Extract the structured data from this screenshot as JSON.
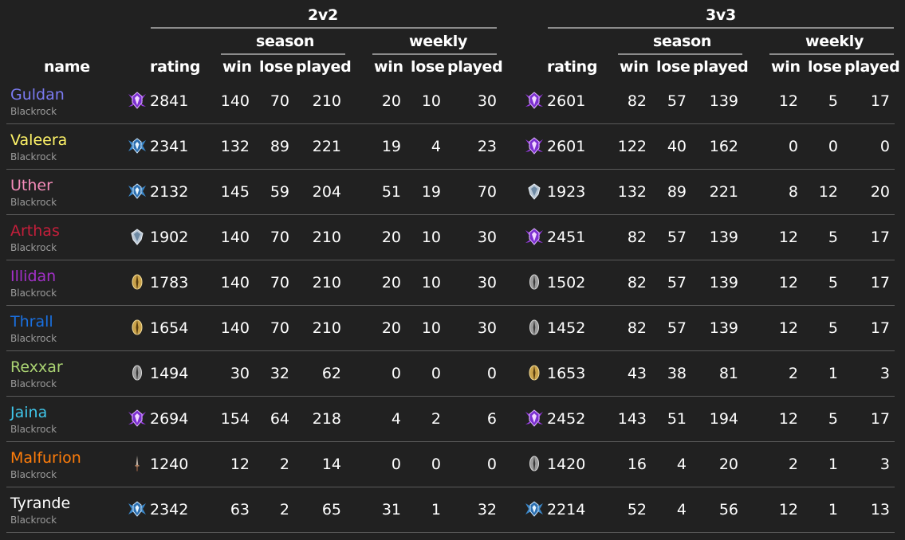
{
  "headers": {
    "name": "name",
    "bracket_2v2": "2v2",
    "bracket_3v3": "3v3",
    "season": "season",
    "weekly": "weekly",
    "rating": "rating",
    "win": "win",
    "lose": "lose",
    "played": "played"
  },
  "colors": {
    "background": "#212121",
    "divider": "#5a5a5a",
    "group_line": "#8c8c8c",
    "realm": "#9a9a9a"
  },
  "players": [
    {
      "name": "Guldan",
      "realm": "Blackrock",
      "color": "#7b7bf2",
      "r2": {
        "icon": "gladiator-icon",
        "rating": "2841",
        "sw": "140",
        "sl": "70",
        "sp": "210",
        "ww": "20",
        "wl": "10",
        "wp": "30"
      },
      "r3": {
        "icon": "gladiator-icon",
        "rating": "2601",
        "sw": "82",
        "sl": "57",
        "sp": "139",
        "ww": "12",
        "wl": "5",
        "wp": "17"
      }
    },
    {
      "name": "Valeera",
      "realm": "Blackrock",
      "color": "#fff468",
      "r2": {
        "icon": "duelist-icon",
        "rating": "2341",
        "sw": "132",
        "sl": "89",
        "sp": "221",
        "ww": "19",
        "wl": "4",
        "wp": "23"
      },
      "r3": {
        "icon": "gladiator-icon",
        "rating": "2601",
        "sw": "122",
        "sl": "40",
        "sp": "162",
        "ww": "0",
        "wl": "0",
        "wp": "0"
      }
    },
    {
      "name": "Uther",
      "realm": "Blackrock",
      "color": "#f58cba",
      "r2": {
        "icon": "duelist-icon",
        "rating": "2132",
        "sw": "145",
        "sl": "59",
        "sp": "204",
        "ww": "51",
        "wl": "19",
        "wp": "70"
      },
      "r3": {
        "icon": "rival-icon",
        "rating": "1923",
        "sw": "132",
        "sl": "89",
        "sp": "221",
        "ww": "8",
        "wl": "12",
        "wp": "20"
      }
    },
    {
      "name": "Arthas",
      "realm": "Blackrock",
      "color": "#c41f3b",
      "r2": {
        "icon": "rival-icon",
        "rating": "1902",
        "sw": "140",
        "sl": "70",
        "sp": "210",
        "ww": "20",
        "wl": "10",
        "wp": "30"
      },
      "r3": {
        "icon": "gladiator-icon",
        "rating": "2451",
        "sw": "82",
        "sl": "57",
        "sp": "139",
        "ww": "12",
        "wl": "5",
        "wp": "17"
      }
    },
    {
      "name": "Illidan",
      "realm": "Blackrock",
      "color": "#a330c9",
      "r2": {
        "icon": "challenger-icon",
        "rating": "1783",
        "sw": "140",
        "sl": "70",
        "sp": "210",
        "ww": "20",
        "wl": "10",
        "wp": "30"
      },
      "r3": {
        "icon": "combatant-icon",
        "rating": "1502",
        "sw": "82",
        "sl": "57",
        "sp": "139",
        "ww": "12",
        "wl": "5",
        "wp": "17"
      }
    },
    {
      "name": "Thrall",
      "realm": "Blackrock",
      "color": "#1a70e0",
      "r2": {
        "icon": "challenger-icon",
        "rating": "1654",
        "sw": "140",
        "sl": "70",
        "sp": "210",
        "ww": "20",
        "wl": "10",
        "wp": "30"
      },
      "r3": {
        "icon": "combatant-icon",
        "rating": "1452",
        "sw": "82",
        "sl": "57",
        "sp": "139",
        "ww": "12",
        "wl": "5",
        "wp": "17"
      }
    },
    {
      "name": "Rexxar",
      "realm": "Blackrock",
      "color": "#abd473",
      "r2": {
        "icon": "combatant-icon",
        "rating": "1494",
        "sw": "30",
        "sl": "32",
        "sp": "62",
        "ww": "0",
        "wl": "0",
        "wp": "0"
      },
      "r3": {
        "icon": "challenger-icon",
        "rating": "1653",
        "sw": "43",
        "sl": "38",
        "sp": "81",
        "ww": "2",
        "wl": "1",
        "wp": "3"
      }
    },
    {
      "name": "Jaina",
      "realm": "Blackrock",
      "color": "#40c7eb",
      "r2": {
        "icon": "gladiator-icon",
        "rating": "2694",
        "sw": "154",
        "sl": "64",
        "sp": "218",
        "ww": "4",
        "wl": "2",
        "wp": "6"
      },
      "r3": {
        "icon": "gladiator-icon",
        "rating": "2452",
        "sw": "143",
        "sl": "51",
        "sp": "194",
        "ww": "12",
        "wl": "5",
        "wp": "17"
      }
    },
    {
      "name": "Malfurion",
      "realm": "Blackrock",
      "color": "#ff7d0a",
      "r2": {
        "icon": "unranked-icon",
        "rating": "1240",
        "sw": "12",
        "sl": "2",
        "sp": "14",
        "ww": "0",
        "wl": "0",
        "wp": "0"
      },
      "r3": {
        "icon": "combatant-icon",
        "rating": "1420",
        "sw": "16",
        "sl": "4",
        "sp": "20",
        "ww": "2",
        "wl": "1",
        "wp": "3"
      }
    },
    {
      "name": "Tyrande",
      "realm": "Blackrock",
      "color": "#ffffff",
      "r2": {
        "icon": "duelist-icon",
        "rating": "2342",
        "sw": "63",
        "sl": "2",
        "sp": "65",
        "ww": "31",
        "wl": "1",
        "wp": "32"
      },
      "r3": {
        "icon": "duelist-icon",
        "rating": "2214",
        "sw": "52",
        "sl": "4",
        "sp": "56",
        "ww": "12",
        "wl": "1",
        "wp": "13"
      }
    }
  ]
}
